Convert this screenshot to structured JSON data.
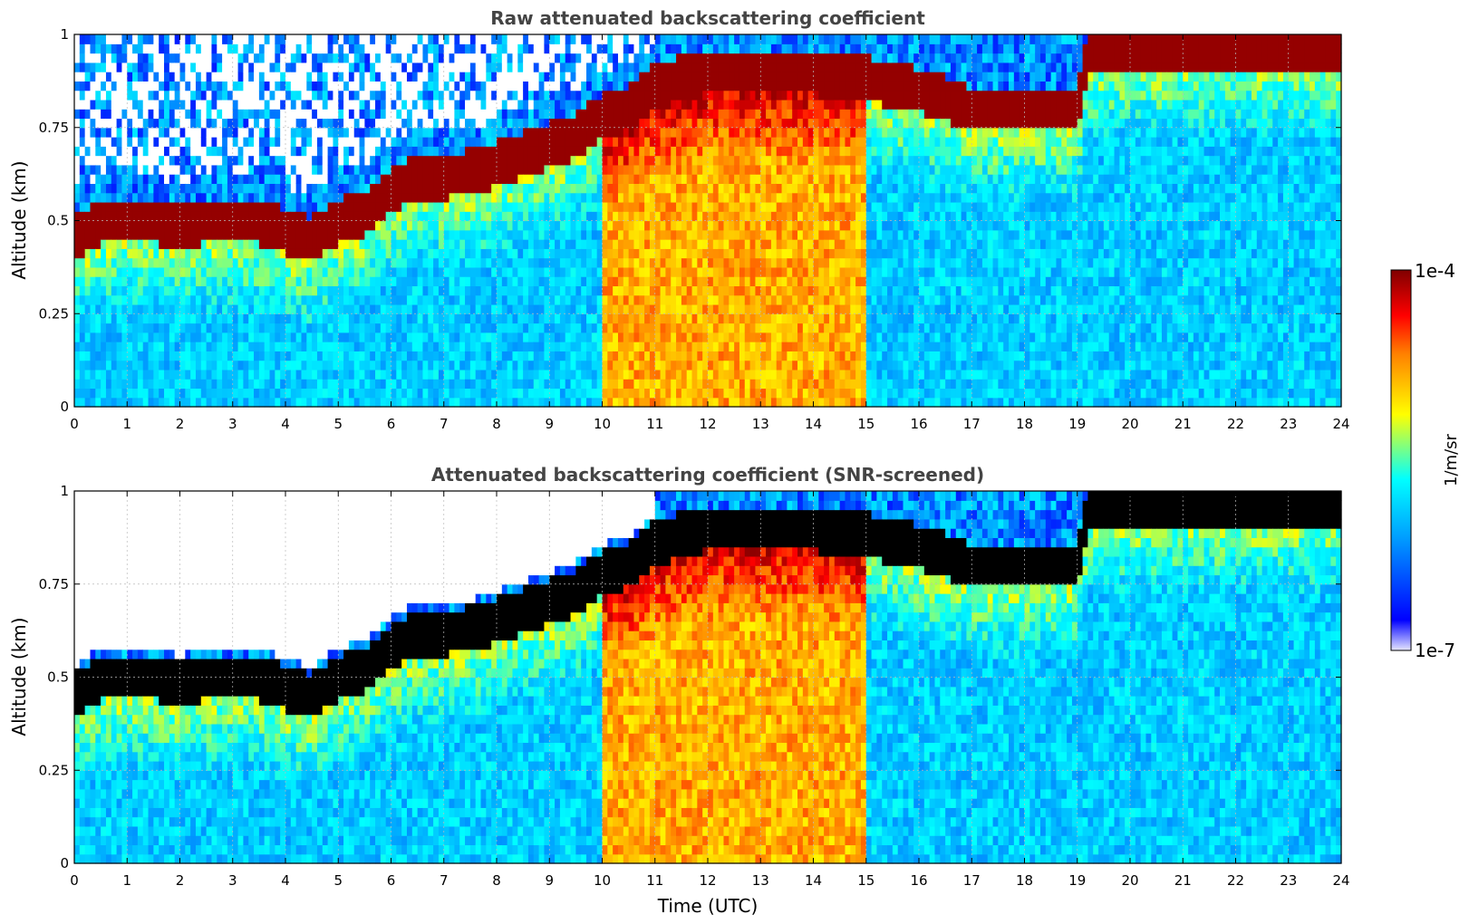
{
  "chart_data": [
    {
      "type": "heatmap",
      "title": "Raw attenuated backscattering coefficient",
      "xlabel": "",
      "ylabel": "Altitude (km)",
      "xlim": [
        0,
        24
      ],
      "ylim": [
        0,
        1
      ],
      "xticks": [
        "0",
        "1",
        "2",
        "3",
        "4",
        "5",
        "6",
        "7",
        "8",
        "9",
        "10",
        "11",
        "12",
        "13",
        "14",
        "15",
        "16",
        "17",
        "18",
        "19",
        "20",
        "21",
        "22",
        "23",
        "24"
      ],
      "yticks": [
        "0",
        "0.25",
        "0.5",
        "0.75",
        "1"
      ],
      "grid": true,
      "screened": false,
      "boundary_layer_top_km": [
        [
          0,
          0.45
        ],
        [
          0.5,
          0.5
        ],
        [
          1,
          0.5
        ],
        [
          1.5,
          0.5
        ],
        [
          2,
          0.48
        ],
        [
          2.5,
          0.5
        ],
        [
          3,
          0.5
        ],
        [
          3.5,
          0.5
        ],
        [
          4,
          0.47
        ],
        [
          4.5,
          0.45
        ],
        [
          5,
          0.5
        ],
        [
          5.5,
          0.52
        ],
        [
          6,
          0.58
        ],
        [
          6.5,
          0.62
        ],
        [
          7,
          0.62
        ],
        [
          7.5,
          0.63
        ],
        [
          8,
          0.65
        ],
        [
          8.5,
          0.68
        ],
        [
          9,
          0.7
        ],
        [
          9.5,
          0.73
        ],
        [
          10,
          0.78
        ],
        [
          10.5,
          0.8
        ],
        [
          11,
          0.86
        ],
        [
          12,
          0.9
        ],
        [
          13,
          0.9
        ],
        [
          14,
          0.9
        ],
        [
          15,
          0.88
        ],
        [
          16,
          0.85
        ],
        [
          17,
          0.8
        ],
        [
          18,
          0.8
        ],
        [
          19,
          0.8
        ],
        [
          19.2,
          0.96
        ],
        [
          20,
          0.97
        ],
        [
          21,
          0.97
        ],
        [
          22,
          0.97
        ],
        [
          23,
          0.97
        ],
        [
          24,
          0.97
        ]
      ]
    },
    {
      "type": "heatmap",
      "title": "Attenuated backscattering coefficient (SNR-screened)",
      "xlabel": "Time (UTC)",
      "ylabel": "Altitude (km)",
      "xlim": [
        0,
        24
      ],
      "ylim": [
        0,
        1
      ],
      "xticks": [
        "0",
        "1",
        "2",
        "3",
        "4",
        "5",
        "6",
        "7",
        "8",
        "9",
        "10",
        "11",
        "12",
        "13",
        "14",
        "15",
        "16",
        "17",
        "18",
        "19",
        "20",
        "21",
        "22",
        "23",
        "24"
      ],
      "yticks": [
        "0",
        "0.25",
        "0.5",
        "0.75",
        "1"
      ],
      "grid": true,
      "screened": true,
      "saturated_color": "#000000",
      "boundary_layer_top_km": [
        [
          0,
          0.45
        ],
        [
          0.5,
          0.5
        ],
        [
          1,
          0.5
        ],
        [
          1.5,
          0.5
        ],
        [
          2,
          0.48
        ],
        [
          2.5,
          0.5
        ],
        [
          3,
          0.5
        ],
        [
          3.5,
          0.5
        ],
        [
          4,
          0.47
        ],
        [
          4.5,
          0.45
        ],
        [
          5,
          0.5
        ],
        [
          5.5,
          0.52
        ],
        [
          6,
          0.58
        ],
        [
          6.5,
          0.62
        ],
        [
          7,
          0.62
        ],
        [
          7.5,
          0.63
        ],
        [
          8,
          0.65
        ],
        [
          8.5,
          0.68
        ],
        [
          9,
          0.7
        ],
        [
          9.5,
          0.73
        ],
        [
          10,
          0.78
        ],
        [
          10.5,
          0.8
        ],
        [
          11,
          0.86
        ],
        [
          12,
          0.9
        ],
        [
          13,
          0.9
        ],
        [
          14,
          0.9
        ],
        [
          15,
          0.88
        ],
        [
          16,
          0.85
        ],
        [
          17,
          0.8
        ],
        [
          18,
          0.8
        ],
        [
          19,
          0.8
        ],
        [
          19.2,
          0.96
        ],
        [
          20,
          0.97
        ],
        [
          21,
          0.97
        ],
        [
          22,
          0.97
        ],
        [
          23,
          0.97
        ],
        [
          24,
          0.97
        ]
      ]
    }
  ],
  "colorbar": {
    "label": "1/m/sr",
    "max_label": "1e-4",
    "min_label": "1e-7",
    "scale": "log",
    "range": [
      1e-07,
      0.0001
    ],
    "colormap": "jet",
    "colors": [
      "#e6e6ff",
      "#0000ff",
      "#00a0ff",
      "#00ffff",
      "#ffff00",
      "#ff8000",
      "#ff0000",
      "#800000"
    ]
  }
}
